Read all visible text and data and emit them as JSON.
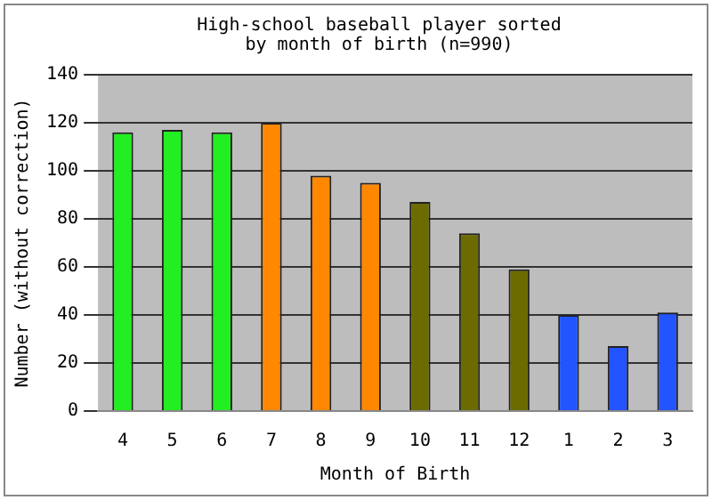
{
  "chart_data": {
    "type": "bar",
    "title": "High-school baseball player sorted by month of birth (n=990)",
    "xlabel": "Month of Birth",
    "ylabel": "Number (without correction)",
    "categories": [
      "4",
      "5",
      "6",
      "7",
      "8",
      "9",
      "10",
      "11",
      "12",
      "1",
      "2",
      "3"
    ],
    "values": [
      116,
      117,
      116,
      120,
      98,
      95,
      87,
      74,
      59,
      40,
      27,
      41
    ],
    "colors": [
      "#22ee22",
      "#22ee22",
      "#22ee22",
      "#ff8800",
      "#ff8800",
      "#ff8800",
      "#6b6b00",
      "#6b6b00",
      "#6b6b00",
      "#2255ff",
      "#2255ff",
      "#2255ff"
    ],
    "ylim": [
      0,
      140
    ],
    "yticks": [
      0,
      20,
      40,
      60,
      80,
      100,
      120,
      140
    ],
    "grid": "y"
  }
}
